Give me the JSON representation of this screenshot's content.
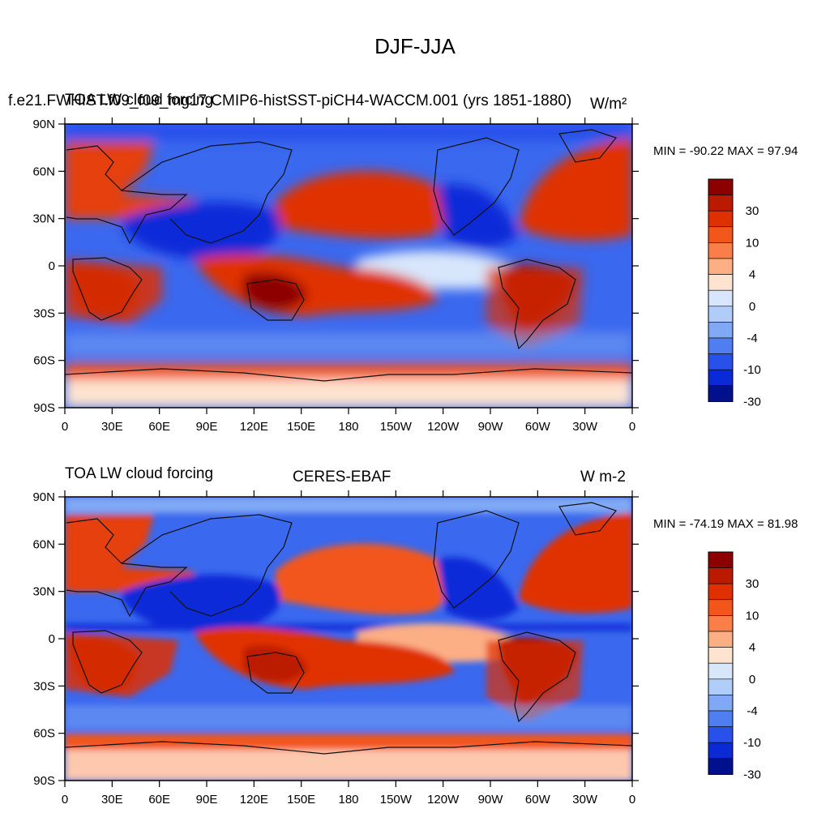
{
  "figure_title": "DJF-JJA",
  "panels": [
    {
      "left_title": "TOA LW cloud forcing",
      "center_title": "f.e21.FWHIST.f09_f09_mg17.CMIP6-histSST-piCH4-WACCM.001 (yrs 1851-1880)",
      "units": "W/m²",
      "min_max": "MIN = -90.22 MAX =  97.94"
    },
    {
      "left_title": "TOA LW cloud forcing",
      "center_title": "CERES-EBAF",
      "units": "W m-2",
      "min_max": "MIN = -74.19 MAX =  81.98"
    }
  ],
  "lat_ticks": [
    "90N",
    "60N",
    "30N",
    "0",
    "30S",
    "60S",
    "90S"
  ],
  "lon_ticks": [
    "0",
    "30E",
    "60E",
    "90E",
    "120E",
    "150E",
    "180",
    "150W",
    "120W",
    "90W",
    "60W",
    "30W",
    "0"
  ],
  "colorbar": {
    "labels": [
      "30",
      "10",
      "4",
      "0",
      "-4",
      "-10",
      "-30"
    ],
    "colors": [
      "#8c0000",
      "#bb1a00",
      "#e03000",
      "#f2561a",
      "#fa7e4a",
      "#fcae84",
      "#fde3d0",
      "#d8e6fb",
      "#b0ccf8",
      "#80a8f4",
      "#4e7ef0",
      "#2850ea",
      "#0a2ad8",
      "#00108e"
    ]
  }
}
